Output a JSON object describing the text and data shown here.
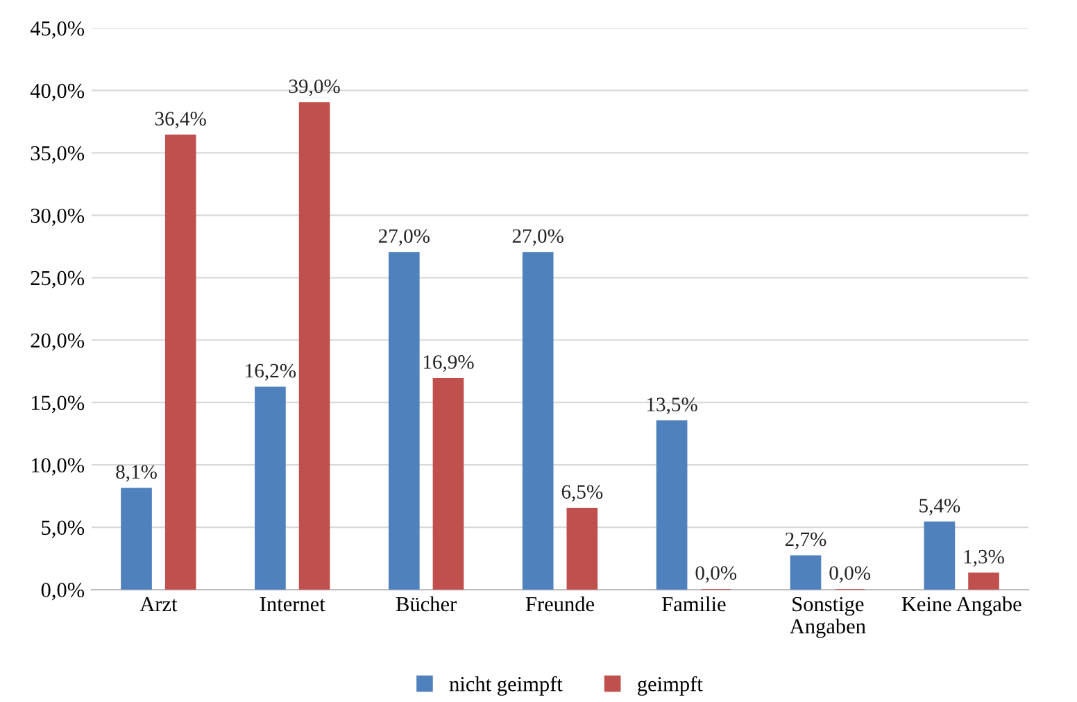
{
  "chart_data": {
    "type": "bar",
    "categories": [
      "Arzt",
      "Internet",
      "Bücher",
      "Freunde",
      "Familie",
      "Sonstige\nAngaben",
      "Keine Angabe"
    ],
    "series": [
      {
        "name": "nicht geimpft",
        "color": "#4f81bd",
        "values": [
          8.1,
          16.2,
          27.0,
          27.0,
          13.5,
          2.7,
          5.4
        ],
        "value_labels": [
          "8,1%",
          "16,2%",
          "27,0%",
          "27,0%",
          "13,5%",
          "2,7%",
          "5,4%"
        ]
      },
      {
        "name": "geimpft",
        "color": "#c0504d",
        "values": [
          36.4,
          39.0,
          16.9,
          6.5,
          0.0,
          0.0,
          1.3
        ],
        "value_labels": [
          "36,4%",
          "39,0%",
          "16,9%",
          "6,5%",
          "0,0%",
          "0,0%",
          "1,3%"
        ]
      }
    ],
    "ylim": [
      0,
      45
    ],
    "yticks": [
      {
        "value": 0,
        "label": "0,0%"
      },
      {
        "value": 5,
        "label": "5,0%"
      },
      {
        "value": 10,
        "label": "10,0%"
      },
      {
        "value": 15,
        "label": "15,0%"
      },
      {
        "value": 20,
        "label": "20,0%"
      },
      {
        "value": 25,
        "label": "25,0%"
      },
      {
        "value": 30,
        "label": "30,0%"
      },
      {
        "value": 35,
        "label": "35,0%"
      },
      {
        "value": 40,
        "label": "40,0%"
      },
      {
        "value": 45,
        "label": "45,0%"
      }
    ],
    "grid": "y",
    "legend": "bottom"
  }
}
